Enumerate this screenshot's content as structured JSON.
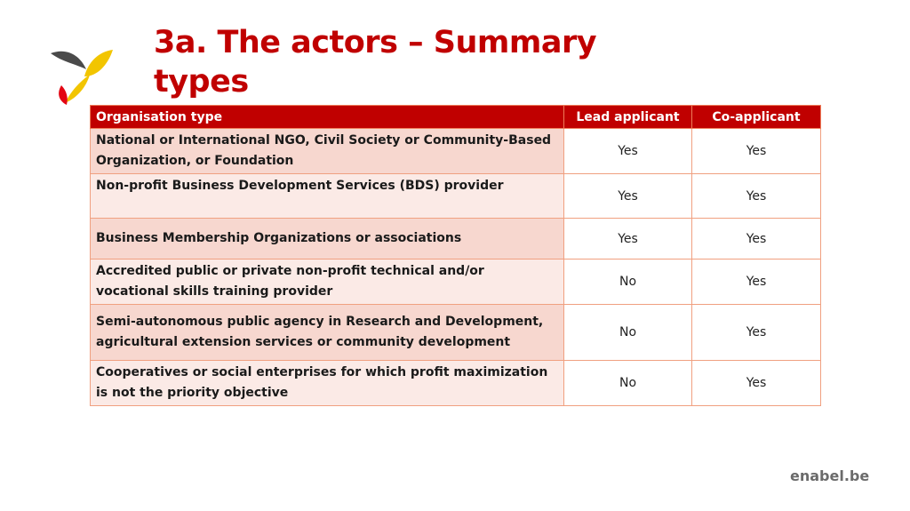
{
  "slide": {
    "title": "3a. The actors – Summary types",
    "brand": "enabel.be",
    "colors": {
      "accent": "#c00000",
      "row_odd": "#f7d7cf",
      "row_even": "#fbeae6",
      "border": "#f0a080"
    }
  },
  "table": {
    "headers": [
      "Organisation type",
      "Lead applicant",
      "Co-applicant"
    ],
    "rows": [
      {
        "type": "National or International NGO, Civil Society or Community-Based Organization, or Foundation",
        "lead": "Yes",
        "co": "Yes"
      },
      {
        "type": "Non-profit Business Development Services (BDS) provider",
        "lead": "Yes",
        "co": "Yes"
      },
      {
        "type": "Business Membership Organizations or associations",
        "lead": "Yes",
        "co": "Yes"
      },
      {
        "type": "Accredited public or private non-profit technical and/or vocational skills training provider",
        "lead": "No",
        "co": "Yes"
      },
      {
        "type": "Semi-autonomous public agency in Research and Development, agricultural extension services or community development",
        "lead": "No",
        "co": "Yes"
      },
      {
        "type": "Cooperatives or social enterprises for which profit maximization is not the priority objective",
        "lead": "No",
        "co": "Yes"
      }
    ]
  }
}
